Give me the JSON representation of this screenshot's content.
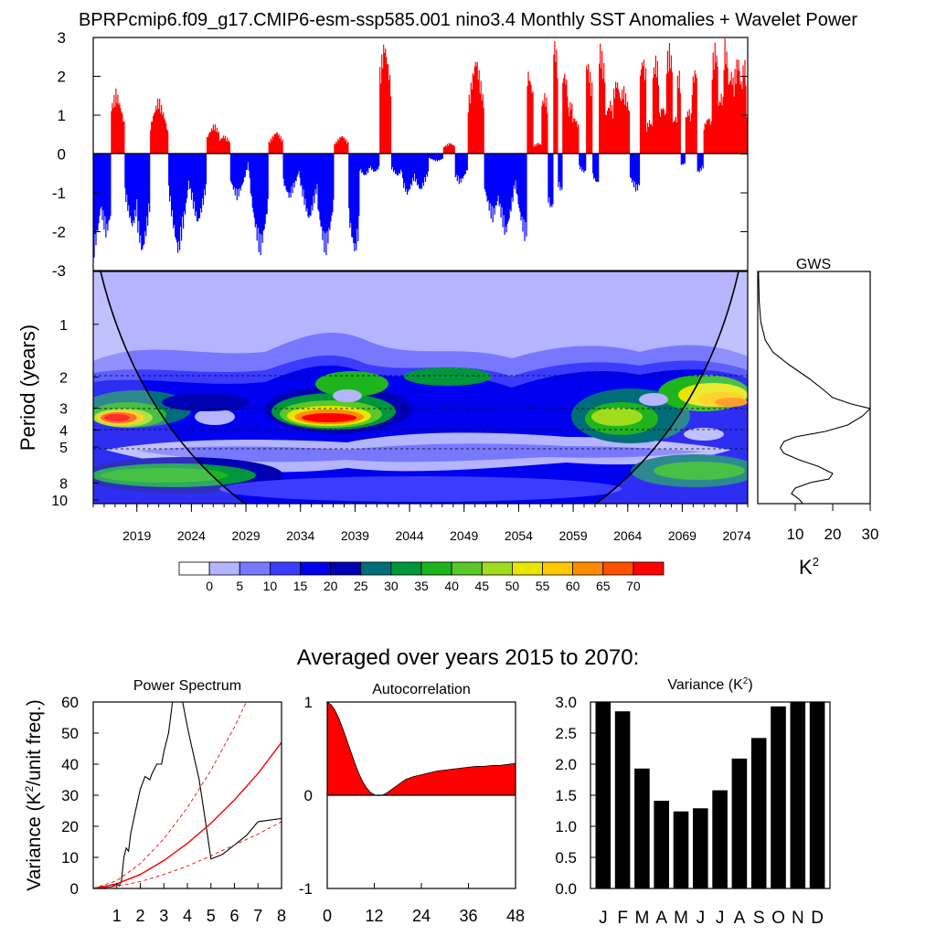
{
  "title": "BPRPcmip6.f09_g17.CMIP6-esm-ssp585.001 nino3.4 Monthly SST Anomalies + Wavelet Power",
  "anomaly": {
    "type": "area",
    "ylim": [
      -3,
      3
    ],
    "yticks": [
      "3",
      "2",
      "1",
      "0",
      "-1",
      "-2",
      "-3"
    ],
    "colors": {
      "positive": "#ff0000",
      "negative": "#0000ff"
    },
    "start_year": 2015,
    "end_year": 2075
  },
  "wavelet": {
    "ylabel": "Period (years)",
    "yticks": [
      "1",
      "2",
      "3",
      "4",
      "5",
      "8",
      "10"
    ],
    "xticks": [
      "2019",
      "2024",
      "2029",
      "2034",
      "2039",
      "2044",
      "2049",
      "2054",
      "2059",
      "2064",
      "2069",
      "2074"
    ],
    "levels": [
      "0",
      "5",
      "10",
      "15",
      "20",
      "25",
      "30",
      "35",
      "40",
      "45",
      "50",
      "55",
      "60",
      "65",
      "70"
    ],
    "palette": [
      "#ffffff",
      "#b4b4ff",
      "#7878ff",
      "#3c3cff",
      "#0000f0",
      "#0000b4",
      "#006e78",
      "#00963c",
      "#1eb41e",
      "#5ac828",
      "#a0dc1e",
      "#e6e600",
      "#ffc800",
      "#ff8c00",
      "#ff5000",
      "#ff0000"
    ]
  },
  "gws": {
    "title": "GWS",
    "xticks": [
      "10",
      "20",
      "30"
    ],
    "xlabel": "K",
    "xlabel_sup": "2"
  },
  "subtitle": "Averaged over years 2015 to 2070:",
  "chart_data": [
    {
      "type": "line",
      "title": "Power Spectrum",
      "ylabel": "Variance (K",
      "ylabel_sup": "2",
      "ylabel_tail": "/unit freq.)",
      "ylim": [
        0,
        60
      ],
      "xlim": [
        0,
        8
      ],
      "yticks": [
        "0",
        "10",
        "20",
        "30",
        "40",
        "50",
        "60"
      ],
      "xticks": [
        "1",
        "2",
        "3",
        "4",
        "5",
        "6",
        "7",
        "8"
      ],
      "series": [
        {
          "x": [
            0.1,
            0.5,
            0.8,
            1.0,
            1.1,
            1.2,
            1.3,
            1.4,
            1.5,
            1.6,
            1.8,
            2.0,
            2.2,
            2.4,
            2.5,
            2.7,
            2.9,
            3.0,
            3.2,
            3.4,
            3.6,
            3.8,
            4.0,
            4.2,
            4.5,
            4.8,
            5.0,
            5.5,
            6.0,
            6.5,
            7.0,
            7.5,
            8.0
          ],
          "y": [
            0,
            0.3,
            0.6,
            1.5,
            0.8,
            2.5,
            10,
            13,
            12,
            18,
            25,
            32,
            36,
            35,
            37,
            40,
            40,
            44,
            50,
            62,
            64,
            60,
            52,
            45,
            35,
            20,
            9.5,
            11,
            14,
            17,
            21.5,
            22,
            22.5
          ],
          "color": "#000000"
        },
        {
          "x": [
            0,
            1,
            2,
            3,
            4,
            5,
            6,
            7,
            8
          ],
          "y": [
            0,
            1.5,
            4.5,
            9,
            14.5,
            21,
            28.5,
            37,
            47
          ],
          "color": "#ff0000"
        },
        {
          "x": [
            0,
            1,
            2,
            3,
            4,
            5,
            6,
            6.5
          ],
          "y": [
            0,
            2.5,
            8,
            16,
            26,
            38,
            52,
            60
          ],
          "color": "#ff0000",
          "dash": true
        },
        {
          "x": [
            0,
            1,
            2,
            3,
            4,
            5,
            6,
            7,
            8
          ],
          "y": [
            0,
            0.7,
            2.2,
            4.5,
            7.2,
            10.5,
            14,
            17.5,
            21.5
          ],
          "color": "#ff0000",
          "dash": true
        }
      ]
    },
    {
      "type": "area",
      "title": "Autocorrelation",
      "ylim": [
        -1,
        1
      ],
      "xlim": [
        0,
        48
      ],
      "yticks": [
        "1",
        "0",
        "-1"
      ],
      "xticks": [
        "0",
        "12",
        "24",
        "36",
        "48"
      ],
      "x": [
        0,
        1,
        2,
        3,
        4,
        5,
        6,
        7,
        8,
        9,
        10,
        11,
        12,
        13,
        14,
        15,
        16,
        17,
        18,
        19,
        20,
        22,
        24,
        26,
        28,
        30,
        32,
        34,
        36,
        38,
        40,
        42,
        44,
        46,
        48
      ],
      "y": [
        1.0,
        0.97,
        0.91,
        0.82,
        0.71,
        0.59,
        0.47,
        0.35,
        0.24,
        0.15,
        0.08,
        0.03,
        0.005,
        -0.005,
        0.0,
        0.02,
        0.05,
        0.08,
        0.11,
        0.14,
        0.17,
        0.2,
        0.22,
        0.24,
        0.26,
        0.27,
        0.28,
        0.29,
        0.3,
        0.31,
        0.31,
        0.32,
        0.32,
        0.33,
        0.34
      ],
      "color": "#ff0000"
    },
    {
      "type": "bar",
      "title": "Variance (K",
      "title_sup": "2",
      "title_tail": ")",
      "ylim": [
        0,
        3.0
      ],
      "yticks": [
        "3.0",
        "2.5",
        "2.0",
        "1.5",
        "1.0",
        "0.5",
        "0.0"
      ],
      "categories": [
        "J",
        "F",
        "M",
        "A",
        "M",
        "J",
        "J",
        "A",
        "S",
        "O",
        "N",
        "D"
      ],
      "values": [
        3.05,
        2.85,
        1.93,
        1.41,
        1.24,
        1.29,
        1.58,
        2.09,
        2.42,
        2.93,
        3.05,
        3.05
      ],
      "color": "#000000"
    }
  ]
}
